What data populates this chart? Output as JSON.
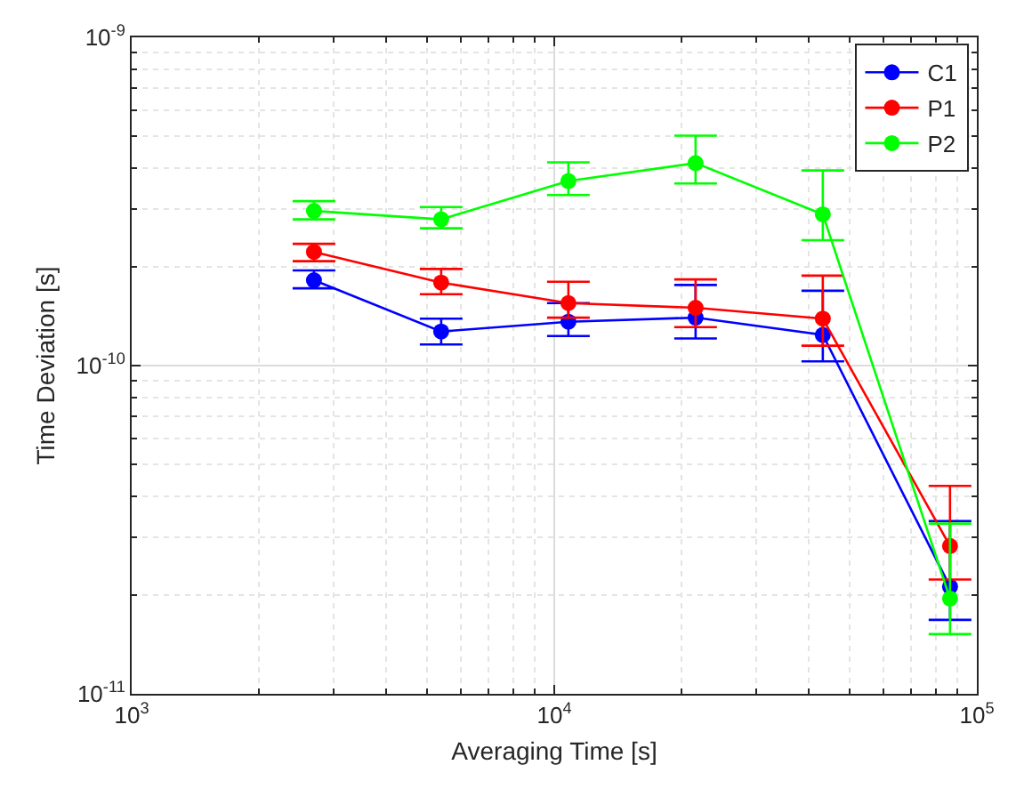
{
  "chart_data": {
    "type": "line",
    "xlabel": "Averaging Time [s]",
    "ylabel": "Time Deviation [s]",
    "x": [
      2700,
      5400,
      10800,
      21600,
      43200,
      86400
    ],
    "series": [
      {
        "name": "C1",
        "color": "#0000ff",
        "values": [
          1.82e-10,
          1.27e-10,
          1.36e-10,
          1.4e-10,
          1.24e-10,
          2.12e-11
        ],
        "errors": [
          [
            1.72e-10,
            1.95e-10
          ],
          [
            1.16e-10,
            1.39e-10
          ],
          [
            1.23e-10,
            1.55e-10
          ],
          [
            1.21e-10,
            1.76e-10
          ],
          [
            1.03e-10,
            1.69e-10
          ],
          [
            1.68e-11,
            3.36e-11
          ]
        ]
      },
      {
        "name": "P1",
        "color": "#ff0000",
        "values": [
          2.22e-10,
          1.79e-10,
          1.55e-10,
          1.5e-10,
          1.39e-10,
          2.82e-11
        ],
        "errors": [
          [
            2.08e-10,
            2.35e-10
          ],
          [
            1.65e-10,
            1.97e-10
          ],
          [
            1.4e-10,
            1.8e-10
          ],
          [
            1.31e-10,
            1.83e-10
          ],
          [
            1.15e-10,
            1.88e-10
          ],
          [
            2.23e-11,
            4.3e-11
          ]
        ]
      },
      {
        "name": "P2",
        "color": "#00ff00",
        "values": [
          2.96e-10,
          2.79e-10,
          3.65e-10,
          4.14e-10,
          2.89e-10,
          1.95e-11
        ],
        "errors": [
          [
            2.79e-10,
            3.17e-10
          ],
          [
            2.62e-10,
            3.04e-10
          ],
          [
            3.31e-10,
            4.16e-10
          ],
          [
            3.59e-10,
            5.02e-10
          ],
          [
            2.41e-10,
            3.93e-10
          ],
          [
            1.52e-11,
            3.3e-11
          ]
        ]
      }
    ],
    "log": "xy",
    "xlim": [
      1000,
      100000
    ],
    "xticks": [
      {
        "value": 1000,
        "label": "10$^{3}$"
      },
      {
        "value": 10000,
        "label": "10$^{4}$"
      },
      {
        "value": 100000,
        "label": "10$^{5}$"
      }
    ],
    "ylim": [
      1e-11,
      1e-09
    ],
    "yticks": [
      {
        "value": 1e-11,
        "label": "10$^{-11}$"
      },
      {
        "value": 1e-10,
        "label": "10$^{-10}$"
      },
      {
        "value": 1e-09,
        "label": "10$^{-9}$"
      }
    ],
    "grid": true,
    "legend": "top right",
    "marker": "circle",
    "line_style": "solid"
  }
}
